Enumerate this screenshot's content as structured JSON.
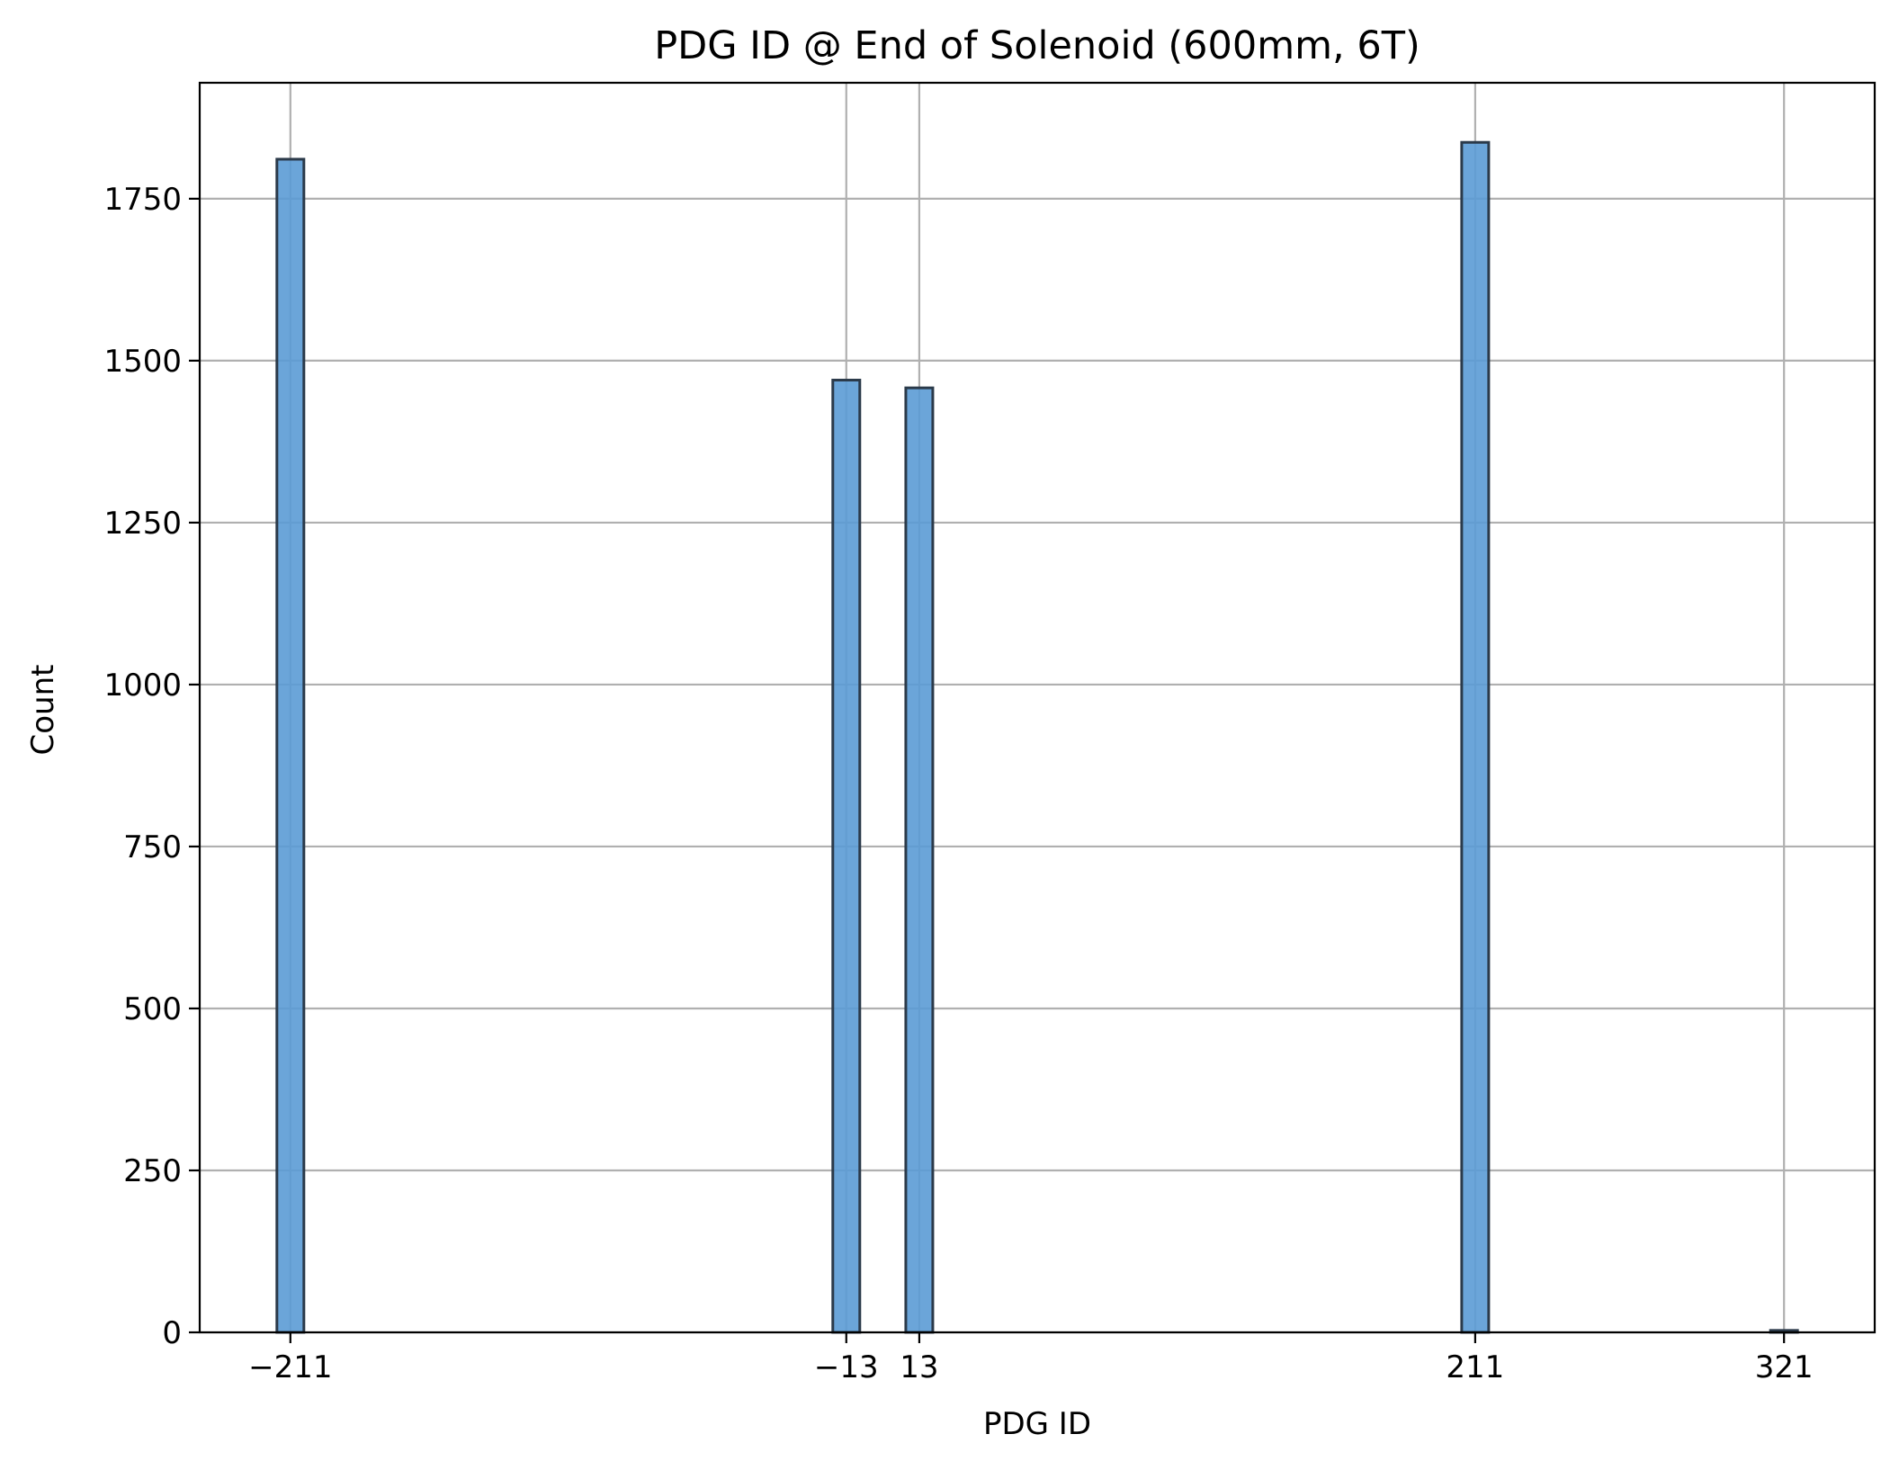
{
  "chart_data": {
    "type": "bar",
    "title": "PDG ID @ End of Solenoid (600mm, 6T)",
    "xlabel": "PDG ID",
    "ylabel": "Count",
    "categories": [
      "−211",
      "−13",
      "13",
      "211",
      "321"
    ],
    "x": [
      -211,
      -13,
      13,
      211,
      321
    ],
    "values": [
      1811,
      1470,
      1458,
      1837,
      3
    ],
    "xlim": [
      -243.3,
      353.3
    ],
    "ylim": [
      0,
      1929
    ],
    "yticks": [
      0,
      250,
      500,
      750,
      1000,
      1250,
      1500,
      1750
    ],
    "ytick_labels": [
      "0",
      "250",
      "500",
      "750",
      "1000",
      "1250",
      "1500",
      "1750"
    ],
    "grid": true,
    "colors": {
      "bar_fill": "#5b9bd5",
      "bar_fill_alpha": 0.9,
      "bar_edge": "#2b3a4a",
      "grid": "#b0b0b0"
    }
  }
}
